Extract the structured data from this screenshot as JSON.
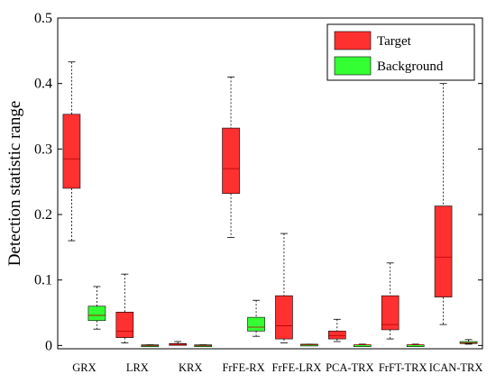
{
  "chart_data": {
    "type": "boxplot",
    "ylabel": "Detection statistic range",
    "xlabel": "",
    "title": "",
    "ylim": [
      -0.005,
      0.5
    ],
    "yticks": [
      0,
      0.1,
      0.2,
      0.3,
      0.4,
      0.5
    ],
    "ytick_labels": [
      "0",
      "0.1",
      "0.2",
      "0.3",
      "0.4",
      "0.5"
    ],
    "grid": false,
    "legend_position": "top-right",
    "categories": [
      "GRX",
      "LRX",
      "KRX",
      "FrFE-RX",
      "FrFE-LRX",
      "PCA-TRX",
      "FrFT-TRX",
      "ICAN-TRX"
    ],
    "series": [
      {
        "name": "Target",
        "color": "#ff3030",
        "boxes": [
          {
            "min": 0.16,
            "q1": 0.24,
            "median": 0.285,
            "q3": 0.353,
            "max": 0.433
          },
          {
            "min": 0.004,
            "q1": 0.012,
            "median": 0.022,
            "q3": 0.051,
            "max": 0.109
          },
          {
            "min": 0.001,
            "q1": 0.001,
            "median": 0.002,
            "q3": 0.003,
            "max": 0.006
          },
          {
            "min": 0.165,
            "q1": 0.232,
            "median": 0.27,
            "q3": 0.332,
            "max": 0.41
          },
          {
            "min": 0.004,
            "q1": 0.01,
            "median": 0.03,
            "q3": 0.076,
            "max": 0.171
          },
          {
            "min": 0.006,
            "q1": 0.01,
            "median": 0.015,
            "q3": 0.022,
            "max": 0.04
          },
          {
            "min": 0.01,
            "q1": 0.024,
            "median": 0.032,
            "q3": 0.076,
            "max": 0.126
          },
          {
            "min": 0.032,
            "q1": 0.074,
            "median": 0.135,
            "q3": 0.213,
            "max": 0.4
          }
        ]
      },
      {
        "name": "Background",
        "color": "#33ff33",
        "boxes": [
          {
            "min": 0.025,
            "q1": 0.038,
            "median": 0.046,
            "q3": 0.06,
            "max": 0.09
          },
          {
            "min": 0.0,
            "q1": 0.0,
            "median": 0.0,
            "q3": 0.001,
            "max": 0.001
          },
          {
            "min": 0.0,
            "q1": 0.0,
            "median": 0.0,
            "q3": 0.001,
            "max": 0.001
          },
          {
            "min": 0.014,
            "q1": 0.022,
            "median": 0.028,
            "q3": 0.043,
            "max": 0.069
          },
          {
            "min": 0.0,
            "q1": 0.001,
            "median": 0.001,
            "q3": 0.002,
            "max": 0.002
          },
          {
            "min": 0.0,
            "q1": 0.0,
            "median": 0.001,
            "q3": 0.001,
            "max": 0.002
          },
          {
            "min": 0.0,
            "q1": 0.0,
            "median": 0.001,
            "q3": 0.001,
            "max": 0.002
          },
          {
            "min": 0.002,
            "q1": 0.003,
            "median": 0.004,
            "q3": 0.006,
            "max": 0.009
          }
        ]
      }
    ]
  }
}
